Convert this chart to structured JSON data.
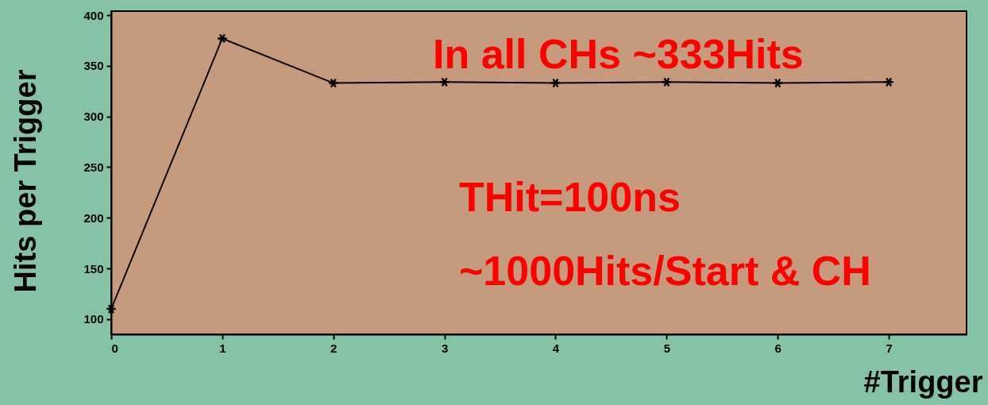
{
  "chart_data": {
    "type": "line",
    "xlabel": "#Trigger",
    "ylabel": "Hits per Trigger",
    "x": [
      0,
      1,
      2,
      3,
      4,
      5,
      6,
      7
    ],
    "series": [
      {
        "color": "#000000",
        "values": [
          110,
          377,
          333,
          334,
          333,
          334,
          333,
          334
        ]
      }
    ],
    "xlim": [
      0,
      7.7
    ],
    "xticks": [
      0,
      1,
      2,
      3,
      4,
      5,
      6,
      7
    ],
    "ylim": [
      85,
      404
    ],
    "yticks": [
      100,
      150,
      200,
      250,
      300,
      350,
      400
    ],
    "marker": "cross",
    "line_style": "solid",
    "grid": false,
    "annotations": [
      "In all CHs   ~333Hits",
      "THit=100ns",
      "~1000Hits/Start & CH"
    ]
  }
}
